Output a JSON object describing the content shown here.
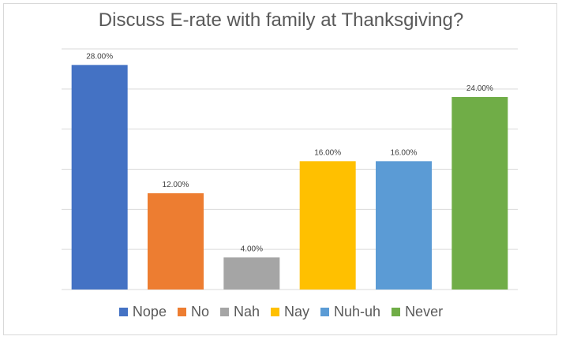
{
  "chart_data": {
    "type": "bar",
    "title": "Discuss E-rate with family at Thanksgiving?",
    "xlabel": "",
    "ylabel": "",
    "categories": [
      "Nope",
      "No",
      "Nah",
      "Nay",
      "Nuh-uh",
      "Never"
    ],
    "values": [
      28.0,
      12.0,
      4.0,
      16.0,
      16.0,
      24.0
    ],
    "data_labels": [
      "28.00%",
      "12.00%",
      "4.00%",
      "16.00%",
      "16.00%",
      "24.00%"
    ],
    "colors": [
      "#4472c4",
      "#ed7d31",
      "#a5a5a5",
      "#ffc000",
      "#5b9bd5",
      "#70ad47"
    ],
    "ylim": [
      0,
      30
    ],
    "grid": true,
    "legend_position": "bottom"
  }
}
